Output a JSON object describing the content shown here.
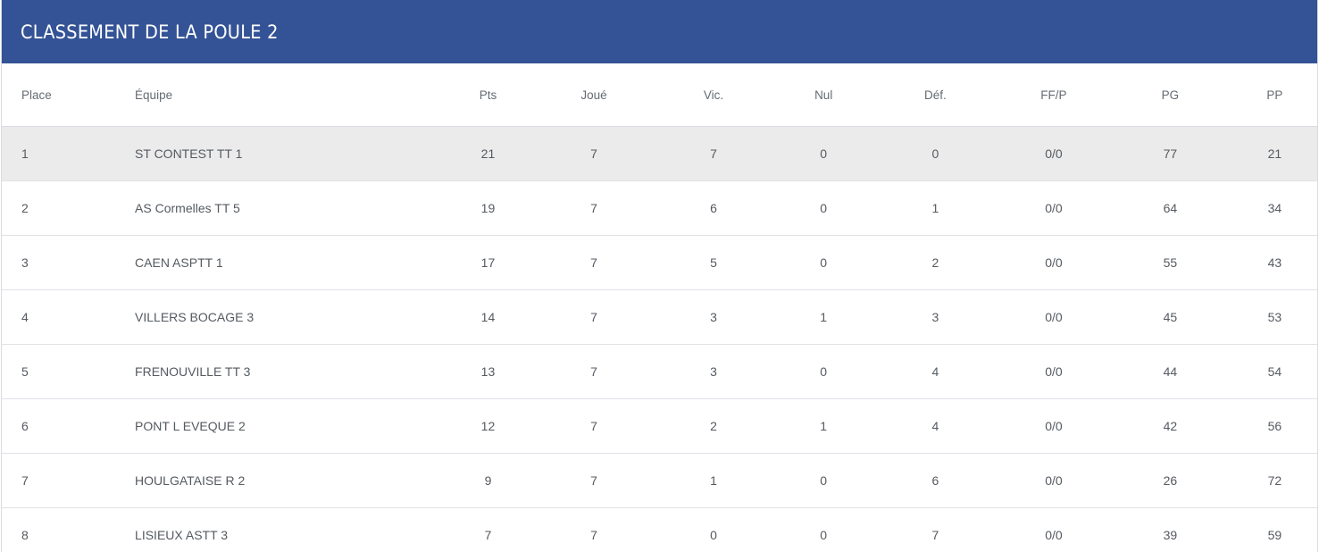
{
  "title": "CLASSEMENT DE LA POULE 2",
  "columns": {
    "place": "Place",
    "team": "Équipe",
    "pts": "Pts",
    "joue": "Joué",
    "vic": "Vic.",
    "nul": "Nul",
    "def": "Déf.",
    "ffp": "FF/P",
    "pg": "PG",
    "pp": "PP"
  },
  "colors": {
    "header_bg": "#345396",
    "highlight_row": "#ebebeb"
  },
  "rows": [
    {
      "place": "1",
      "team": "ST CONTEST TT 1",
      "pts": "21",
      "joue": "7",
      "vic": "7",
      "nul": "0",
      "def": "0",
      "ffp": "0/0",
      "pg": "77",
      "pp": "21"
    },
    {
      "place": "2",
      "team": "AS Cormelles TT 5",
      "pts": "19",
      "joue": "7",
      "vic": "6",
      "nul": "0",
      "def": "1",
      "ffp": "0/0",
      "pg": "64",
      "pp": "34"
    },
    {
      "place": "3",
      "team": "CAEN ASPTT 1",
      "pts": "17",
      "joue": "7",
      "vic": "5",
      "nul": "0",
      "def": "2",
      "ffp": "0/0",
      "pg": "55",
      "pp": "43"
    },
    {
      "place": "4",
      "team": "VILLERS BOCAGE 3",
      "pts": "14",
      "joue": "7",
      "vic": "3",
      "nul": "1",
      "def": "3",
      "ffp": "0/0",
      "pg": "45",
      "pp": "53"
    },
    {
      "place": "5",
      "team": "FRENOUVILLE TT 3",
      "pts": "13",
      "joue": "7",
      "vic": "3",
      "nul": "0",
      "def": "4",
      "ffp": "0/0",
      "pg": "44",
      "pp": "54"
    },
    {
      "place": "6",
      "team": "PONT L EVEQUE 2",
      "pts": "12",
      "joue": "7",
      "vic": "2",
      "nul": "1",
      "def": "4",
      "ffp": "0/0",
      "pg": "42",
      "pp": "56"
    },
    {
      "place": "7",
      "team": "HOULGATAISE R 2",
      "pts": "9",
      "joue": "7",
      "vic": "1",
      "nul": "0",
      "def": "6",
      "ffp": "0/0",
      "pg": "26",
      "pp": "72"
    },
    {
      "place": "8",
      "team": "LISIEUX ASTT 3",
      "pts": "7",
      "joue": "7",
      "vic": "0",
      "nul": "0",
      "def": "7",
      "ffp": "0/0",
      "pg": "39",
      "pp": "59"
    }
  ]
}
